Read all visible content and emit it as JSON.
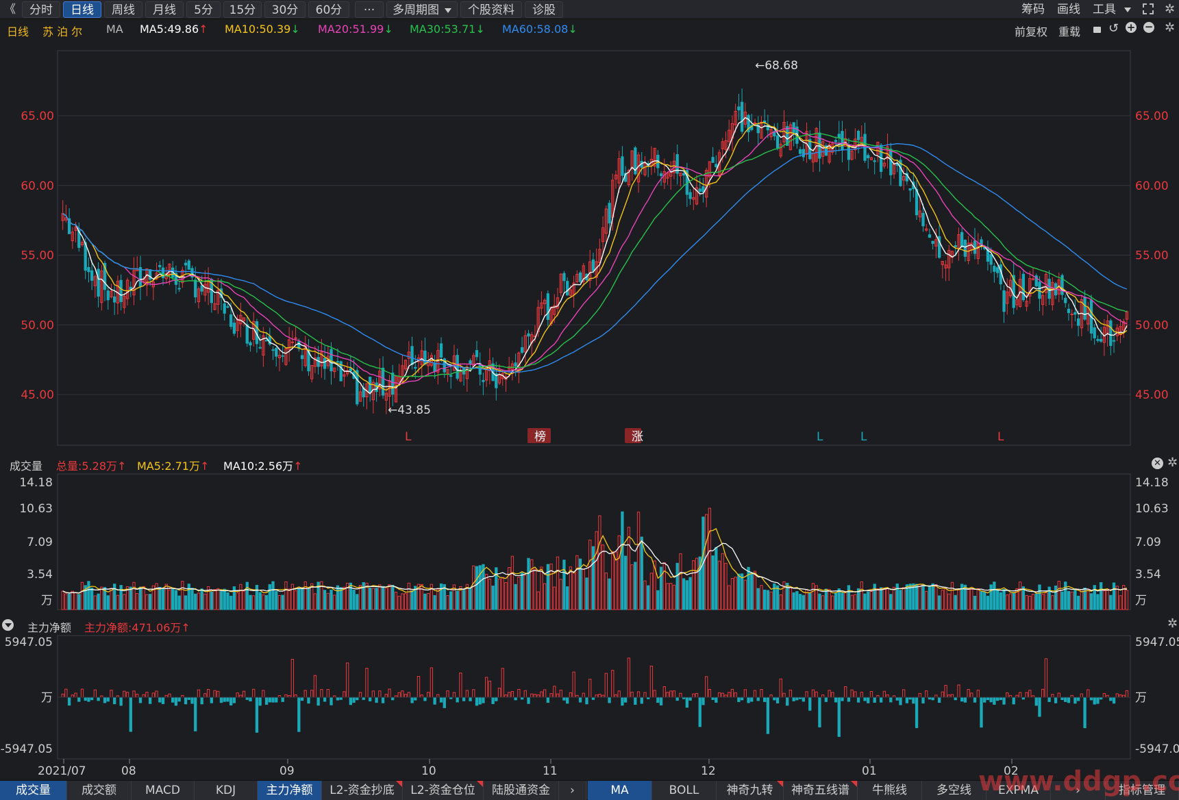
{
  "toolbar": {
    "back": "《",
    "periods": [
      "分时",
      "日线",
      "周线",
      "月线",
      "5分",
      "15分",
      "30分",
      "60分"
    ],
    "more": "···",
    "multi_period": "多周期图",
    "stock_info": "个股资料",
    "diagnose": "诊股",
    "right": [
      "筹码",
      "画线",
      "工具"
    ]
  },
  "kline": {
    "period": "日线",
    "name": "苏 泊 尔",
    "ma_label": "MA",
    "ma5": "MA5:49.86",
    "ma10": "MA10:50.39",
    "ma20": "MA20:51.99",
    "ma30": "MA30:53.71",
    "ma60": "MA60:58.08",
    "fq": "前复权",
    "reload": "重载",
    "y_ticks": [
      "65.00",
      "60.00",
      "55.00",
      "50.00",
      "45.00"
    ],
    "high_mark": "←68.68",
    "low_mark": "←43.85",
    "events": [
      "L",
      "榜",
      "涨",
      "L",
      "L",
      "L"
    ]
  },
  "volume": {
    "title": "成交量",
    "total": "总量:5.28万",
    "ma5": "MA5:2.71万",
    "ma10": "MA10:2.56万",
    "y_ticks": [
      "14.18",
      "10.63",
      "7.09",
      "3.54",
      "万"
    ]
  },
  "mainflow": {
    "title": "主力净额",
    "value": "主力净额:471.06万",
    "y_ticks": [
      "5947.05",
      "万",
      "-5947.05"
    ]
  },
  "x_axis": [
    "2021/07",
    "08",
    "09",
    "10",
    "11",
    "12",
    "01",
    "02"
  ],
  "bottom_tabs_left": [
    "成交量",
    "成交额",
    "MACD",
    "KDJ",
    "主力净额",
    "L2-资金抄底",
    "L2-资金仓位",
    "陆股通资金"
  ],
  "bottom_tabs_right": [
    "MA",
    "BOLL",
    "神奇九转",
    "神奇五线谱",
    "牛熊线",
    "多空线",
    "EXPMA",
    "指标管理"
  ],
  "watermark": "www.ddgp.com",
  "colors": {
    "up": "#e8393d",
    "down": "#1aa9b8",
    "ma5": "#ffffff",
    "ma10": "#f5c518",
    "ma20": "#e844b8",
    "ma30": "#27c24c",
    "ma60": "#2f8cf0"
  }
}
